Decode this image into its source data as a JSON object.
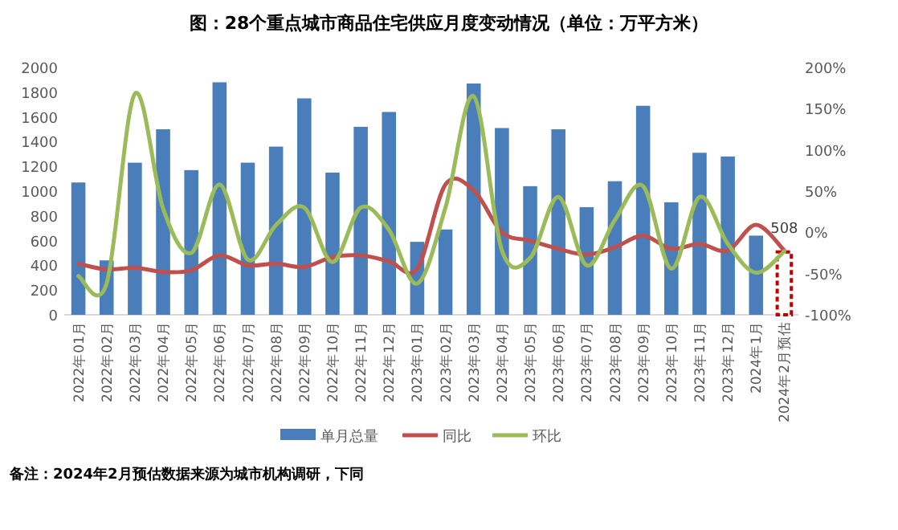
{
  "chart_data": {
    "type": "bar",
    "title": "图：28个重点城市商品住宅供应月度变动情况（单位：万平方米）",
    "categories": [
      "2022年01月",
      "2022年02月",
      "2022年03月",
      "2022年04月",
      "2022年05月",
      "2022年06月",
      "2022年07月",
      "2022年08月",
      "2022年09月",
      "2022年10月",
      "2022年11月",
      "2022年12月",
      "2023年01月",
      "2023年02月",
      "2023年03月",
      "2023年04月",
      "2023年05月",
      "2023年06月",
      "2023年07月",
      "2023年08月",
      "2023年09月",
      "2023年10月",
      "2023年11月",
      "2023年12月",
      "2024年1月",
      "2024年2月预估"
    ],
    "series": [
      {
        "name": "单月总量",
        "color": "#4a7ebb",
        "colors": [
          "#4a7ebb",
          "#4a7ebb",
          "#4a7ebb",
          "#4a7ebb",
          "#4a7ebb",
          "#4a7ebb",
          "#4a7ebb",
          "#4a7ebb",
          "#4a7ebb",
          "#4a7ebb",
          "#4a7ebb",
          "#4a7ebb",
          "#4a7ebb",
          "#4a7ebb",
          "#4a7ebb",
          "#4a7ebb",
          "#4a7ebb",
          "#4a7ebb",
          "#4a7ebb",
          "#4a7ebb",
          "#4a7ebb",
          "#4a7ebb",
          "#4a7ebb",
          "#4a7ebb",
          "#4a7ebb",
          "#c00000"
        ],
        "values": [
          1070,
          440,
          1230,
          1500,
          1170,
          1880,
          1230,
          1360,
          1750,
          1150,
          1520,
          1640,
          590,
          690,
          1870,
          1510,
          1040,
          1500,
          870,
          1080,
          1690,
          910,
          1310,
          1280,
          640,
          508
        ],
        "value_labels": [
          null,
          null,
          null,
          null,
          null,
          null,
          null,
          null,
          null,
          null,
          null,
          null,
          null,
          null,
          null,
          null,
          null,
          null,
          null,
          null,
          null,
          null,
          null,
          null,
          null,
          "508"
        ]
      },
      {
        "name": "同比",
        "type": "line",
        "axis": "y2",
        "color": "#c0504d",
        "values": [
          -38,
          -45,
          -43,
          -48,
          -46,
          -28,
          -40,
          -38,
          -42,
          -30,
          -28,
          -35,
          -44,
          58,
          51,
          0,
          -10,
          -20,
          -27,
          -18,
          -4,
          -20,
          -14,
          -22,
          9,
          -22
        ]
      },
      {
        "name": "环比",
        "type": "line",
        "axis": "y2",
        "color": "#9bbb59",
        "values": [
          -53,
          -62,
          168,
          29,
          -25,
          58,
          -33,
          9,
          30,
          -36,
          30,
          3,
          -62,
          30,
          165,
          -22,
          -31,
          43,
          -40,
          15,
          56,
          -44,
          43,
          -14,
          -49,
          -23
        ]
      }
    ],
    "ylim": [
      0,
      2000
    ],
    "yticks": [
      0,
      200,
      400,
      600,
      800,
      1000,
      1200,
      1400,
      1600,
      1800,
      2000
    ],
    "y2lim": [
      -100,
      200
    ],
    "y2ticks": [
      {
        "value": -100,
        "label": "-100%"
      },
      {
        "value": -50,
        "label": "-50%"
      },
      {
        "value": 0,
        "label": "0%"
      },
      {
        "value": 50,
        "label": "50%"
      },
      {
        "value": 100,
        "label": "100%"
      },
      {
        "value": 150,
        "label": "150%"
      },
      {
        "value": 200,
        "label": "200%"
      }
    ],
    "legend": "bottom",
    "grid": false,
    "annotations": [
      "备注：2024年2月预估数据来源为城市机构调研，下同"
    ]
  }
}
